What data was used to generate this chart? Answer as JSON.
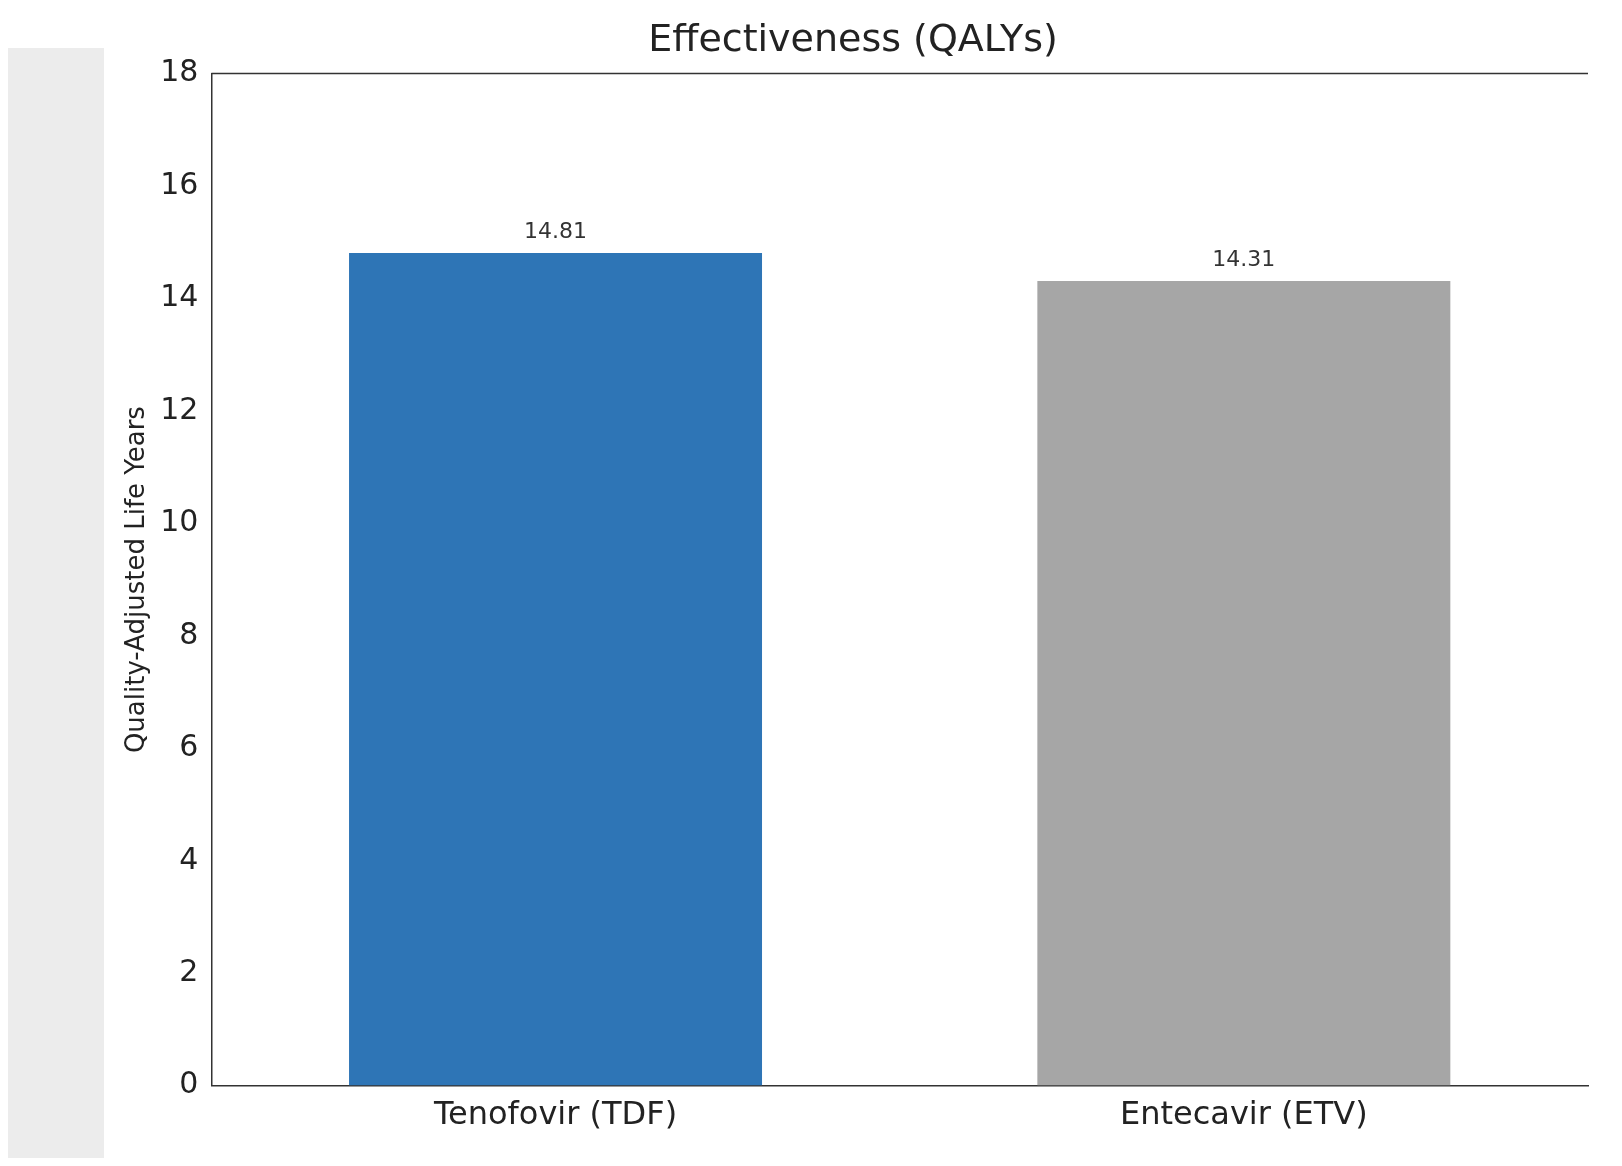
{
  "chart_data": {
    "type": "bar",
    "title": "Effectiveness (QALYs)",
    "ylabel": "Quality-Adjusted Life Years",
    "categories": [
      "Tenofovir (TDF)",
      "Entecavir (ETV)"
    ],
    "values": [
      14.81,
      14.31
    ],
    "colors": [
      "#2e75b6",
      "#a6a6a6"
    ],
    "ylim": [
      0,
      18
    ],
    "yticks": [
      0,
      2,
      4,
      6,
      8,
      10,
      12,
      14,
      16,
      18
    ],
    "data_labels": true,
    "grid": false,
    "legend": false
  }
}
